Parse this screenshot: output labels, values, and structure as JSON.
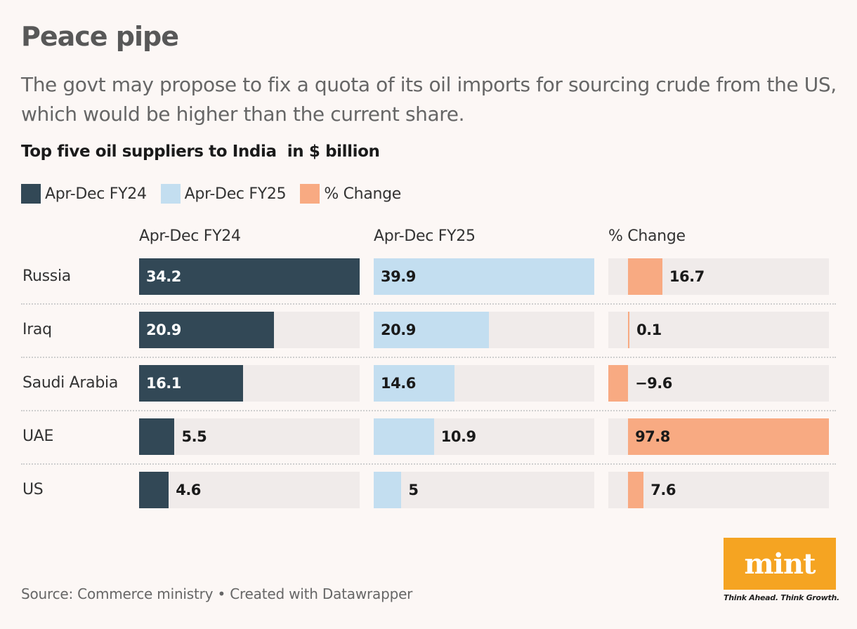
{
  "headline": "Peace pipe",
  "subhead": "The govt may propose to fix a quota of its oil imports for sourcing crude from the US, which would be higher than the current share.",
  "source": "Source: Commerce ministry • Created with Datawrapper",
  "logo": {
    "text": "mint",
    "tagline": "Think Ahead. Think Growth.",
    "color": "#f5a422"
  },
  "chart_data": {
    "type": "bar",
    "title": "Top five oil suppliers to India  in $ billion",
    "categories": [
      "Russia",
      "Iraq",
      "Saudi Arabia",
      "UAE",
      "US"
    ],
    "series": [
      {
        "name": "Apr-Dec FY24",
        "values": [
          34.2,
          20.9,
          16.1,
          5.5,
          4.6
        ],
        "labels": [
          "34.2",
          "20.9",
          "16.1",
          "5.5",
          "4.6"
        ],
        "color": "#324856",
        "max": 34.2
      },
      {
        "name": "Apr-Dec FY25",
        "values": [
          39.9,
          20.9,
          14.6,
          10.9,
          5
        ],
        "labels": [
          "39.9",
          "20.9",
          "14.6",
          "10.9",
          "5"
        ],
        "color": "#c3def0",
        "max": 39.9
      },
      {
        "name": "% Change",
        "values": [
          16.7,
          0.1,
          -9.6,
          97.8,
          7.6
        ],
        "labels": [
          "16.7",
          "0.1",
          "−9.6",
          "97.8",
          "7.6"
        ],
        "color": "#f8aa82",
        "min": -9.6,
        "max": 97.8
      }
    ],
    "legend": "top-left",
    "grid": false
  }
}
